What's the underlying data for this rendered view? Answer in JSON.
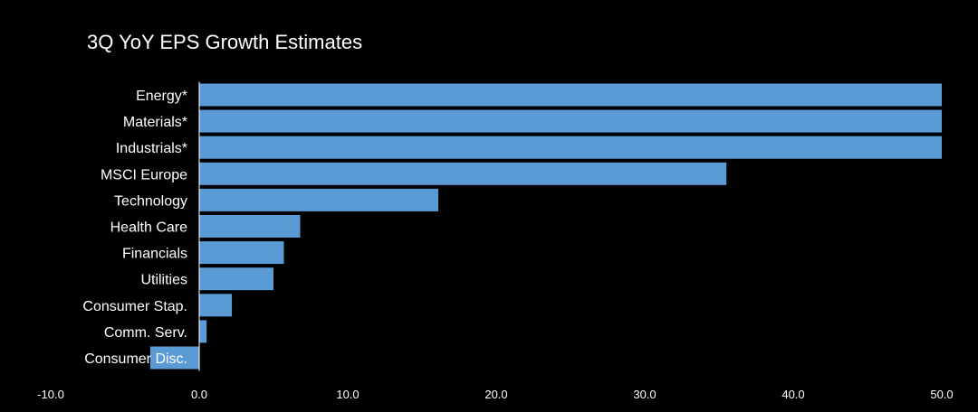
{
  "chart_data": {
    "type": "bar",
    "orientation": "horizontal",
    "title": "3Q YoY EPS Growth Estimates",
    "xlabel": "",
    "ylabel": "",
    "categories": [
      "Energy*",
      "Materials*",
      "Industrials*",
      "MSCI Europe",
      "Technology",
      "Health Care",
      "Financials",
      "Utilities",
      "Consumer Stap.",
      "Comm. Serv.",
      "Consumer Disc."
    ],
    "values": [
      50.0,
      50.0,
      50.0,
      35.5,
      16.1,
      6.8,
      5.7,
      5.0,
      2.2,
      0.5,
      -3.3
    ],
    "xlim": [
      -10,
      50
    ],
    "xticks": [
      "-10.0",
      "0.0",
      "10.0",
      "20.0",
      "30.0",
      "40.0",
      "50.0"
    ],
    "grid": false,
    "legend": "none",
    "colors": {
      "background": "#000000",
      "bar": "#5b9bd5",
      "text": "#ffffff",
      "axis": "#ffffff"
    }
  }
}
